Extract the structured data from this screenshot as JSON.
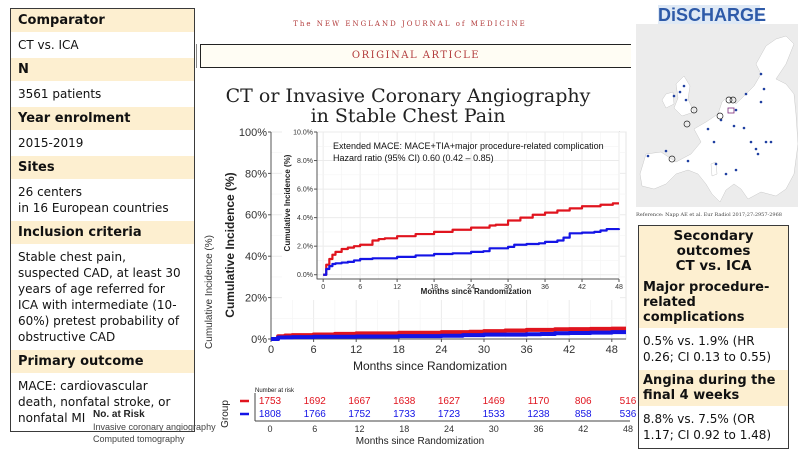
{
  "info_panel": {
    "sections": [
      {
        "heading": "Comparator",
        "value": "CT vs. ICA"
      },
      {
        "heading": "N",
        "value": "3561 patients"
      },
      {
        "heading": "Year enrolment",
        "value": "2015-2019"
      },
      {
        "heading": "Sites",
        "value": "26 centers\nin 16 European countries"
      },
      {
        "heading": "Inclusion criteria",
        "value": "Stable chest pain, suspected CAD, at least 30 years of age referred for ICA with intermediate (10-60%) pretest probability of obstructive CAD"
      },
      {
        "heading": "Primary outcome",
        "value": "MACE: cardiovascular death, nonfatal stroke, or nonfatal MI"
      }
    ]
  },
  "no_at_risk_legend": {
    "title": "No. at Risk",
    "rows": [
      "Invasive coronary angiography",
      "Computed tomography"
    ]
  },
  "header": {
    "journal": "The NEW ENGLAND JOURNAL of MEDICINE",
    "banner": "ORIGINAL ARTICLE",
    "title_line1": "CT or Invasive Coronary Angiography",
    "title_line2": "in Stable Chest Pain"
  },
  "logo": {
    "text": "DiSCHARGE"
  },
  "map": {
    "reference": "Reference: Napp AE et al. Eur Radiol 2017;27:2957-2968",
    "site_color": "#1f3fa0"
  },
  "secondary": {
    "title_line1": "Secondary outcomes",
    "title_line2": "CT vs. ICA",
    "items": [
      {
        "heading": "Major procedure-related complications",
        "value": "0.5% vs. 1.9% (HR 0.26; CI 0.13 to 0.55)"
      },
      {
        "heading": "Angina during the final 4 weeks",
        "value": "8.8% vs. 7.5% (OR 1.17; CI 0.92 to 1.48)"
      }
    ]
  },
  "colors": {
    "ica": "#e0141e",
    "ct": "#1414e6",
    "header_bg": "#fdefd0",
    "nejm_red": "#b23b3b"
  },
  "chart_data": [
    {
      "type": "line",
      "name": "main",
      "title": "",
      "xlabel": "Months since Randomization",
      "ylabel": "Cumulative Incidence (%)",
      "ylabel_outer": "Cumulative Incidence (%)",
      "x_ticks": [
        0,
        6,
        12,
        18,
        24,
        30,
        36,
        42,
        48
      ],
      "y_ticks": [
        0,
        20,
        40,
        60,
        80,
        100
      ],
      "y_tick_labels": [
        "0%",
        "20%",
        "40%",
        "60%",
        "80%",
        "100%"
      ],
      "xlim": [
        0,
        50
      ],
      "ylim": [
        0,
        100
      ],
      "grid": true,
      "series": [
        {
          "name": "Invasive coronary angiography",
          "color": "#e0141e",
          "x": [
            0,
            1,
            2,
            3,
            6,
            9,
            12,
            18,
            24,
            28,
            30,
            33,
            36,
            40,
            42,
            45,
            48,
            50
          ],
          "y": [
            0,
            1.3,
            1.7,
            1.9,
            2.2,
            2.5,
            2.7,
            3.0,
            3.3,
            3.5,
            3.8,
            4.1,
            4.4,
            4.7,
            4.8,
            4.9,
            5.0,
            5.0
          ]
        },
        {
          "name": "Computed tomography",
          "color": "#1414e6",
          "x": [
            0,
            1,
            2,
            3,
            6,
            9,
            12,
            18,
            24,
            27,
            30,
            33,
            36,
            38,
            40,
            42,
            45,
            48,
            50
          ],
          "y": [
            0,
            0.7,
            0.8,
            0.9,
            1.1,
            1.1,
            1.2,
            1.4,
            1.6,
            1.9,
            2.1,
            2.1,
            2.3,
            2.4,
            2.8,
            2.9,
            3.1,
            3.3,
            3.3
          ]
        }
      ]
    },
    {
      "type": "line",
      "name": "inset",
      "annotation_line1": "Extended MACE: MACE+TIA+major procedure-related complication",
      "annotation_line2": "Hazard ratio (95% CI) 0.60 (0.42 – 0.85)",
      "xlabel": "Months since Randomization",
      "ylabel": "Cumulative Incidence (%)",
      "x_ticks": [
        0,
        6,
        12,
        18,
        24,
        30,
        36,
        42,
        48
      ],
      "y_ticks": [
        0,
        2,
        4,
        6,
        8,
        10
      ],
      "y_tick_labels": [
        "0.0%",
        "2.0%",
        "4.0%",
        "6.0%",
        "8.0%",
        "10.0%"
      ],
      "xlim": [
        -1,
        48
      ],
      "ylim": [
        -0.3,
        10
      ],
      "grid": true,
      "series": [
        {
          "name": "Invasive coronary angiography",
          "color": "#e0141e",
          "x": [
            0,
            0.5,
            1,
            1.5,
            2,
            3,
            4,
            5,
            6,
            8,
            9,
            10,
            12,
            15,
            18,
            21,
            24,
            27,
            28,
            30,
            32,
            34,
            36,
            38,
            40,
            42,
            45,
            47,
            48
          ],
          "y": [
            0,
            0.7,
            1.1,
            1.4,
            1.6,
            1.8,
            1.9,
            2.0,
            2.1,
            2.4,
            2.5,
            2.55,
            2.7,
            2.85,
            3.0,
            3.15,
            3.3,
            3.45,
            3.5,
            3.8,
            4.0,
            4.2,
            4.35,
            4.5,
            4.65,
            4.8,
            4.9,
            5.0,
            5.0
          ]
        },
        {
          "name": "Computed tomography",
          "color": "#1414e6",
          "x": [
            0,
            0.5,
            1,
            1.5,
            2,
            3,
            4,
            5,
            6,
            8,
            10,
            12,
            15,
            18,
            21,
            24,
            26,
            27,
            30,
            31,
            33,
            35,
            36,
            37,
            38,
            39,
            40,
            42,
            44,
            45,
            46,
            48
          ],
          "y": [
            0,
            0.4,
            0.6,
            0.75,
            0.8,
            0.85,
            0.9,
            1.0,
            1.1,
            1.15,
            1.15,
            1.25,
            1.35,
            1.45,
            1.5,
            1.6,
            1.65,
            1.85,
            1.95,
            2.1,
            2.15,
            2.2,
            2.3,
            2.3,
            2.4,
            2.6,
            2.9,
            2.95,
            3.0,
            3.1,
            3.2,
            3.25
          ]
        }
      ]
    }
  ],
  "risk_table": {
    "title": "Number at risk",
    "group_label": "Group",
    "xlabel": "Months since Randomization",
    "months": [
      0,
      6,
      12,
      18,
      24,
      30,
      36,
      42,
      48
    ],
    "rows": [
      {
        "name": "Invasive coronary angiography",
        "color": "#e0141e",
        "values": [
          1753,
          1692,
          1667,
          1638,
          1627,
          1469,
          1170,
          806,
          516
        ]
      },
      {
        "name": "Computed tomography",
        "color": "#1414e6",
        "values": [
          1808,
          1766,
          1752,
          1733,
          1723,
          1533,
          1238,
          858,
          536
        ]
      }
    ]
  }
}
